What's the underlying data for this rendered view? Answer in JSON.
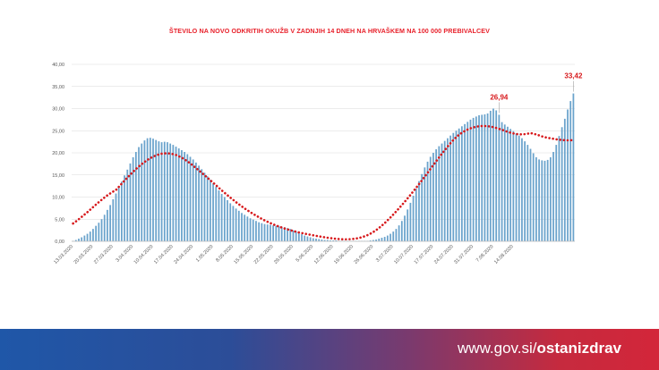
{
  "chart_data": {
    "type": "bar",
    "title": "ŠTEVILO NA NOVO ODKRITIH OKUŽB V ZADNJIH 14 DNEH NA HRVAŠKEM NA 100 000 PREBIVALCEV",
    "xlabel": "",
    "ylabel": "",
    "ylim": [
      0,
      40
    ],
    "y_ticks": [
      "0,00",
      "5,00",
      "10,00",
      "15,00",
      "20,00",
      "25,00",
      "30,00",
      "35,00",
      "40,00"
    ],
    "x_tick_labels": [
      "13.03.2020",
      "20.03.2020",
      "27.03.2020",
      "3.04.2020",
      "10.04.2020",
      "17.04.2020",
      "24.04.2020",
      "1.05.2020",
      "8.05.2020",
      "15.05.2020",
      "22.05.2020",
      "29.05.2020",
      "5.06.2020",
      "12.06.2020",
      "19.06.2020",
      "26.06.2020",
      "3.07.2020",
      "10.07.2020",
      "17.07.2020",
      "24.07.2020",
      "31.07.2020",
      "7.08.2020",
      "14.08.2020"
    ],
    "values": [
      0.1,
      0.3,
      0.6,
      0.9,
      1.3,
      1.7,
      2.2,
      2.8,
      3.5,
      4.2,
      5,
      6,
      7.1,
      8.2,
      9.5,
      10.8,
      12.1,
      13.5,
      14.9,
      16.2,
      17.6,
      19,
      20.2,
      21.3,
      22.1,
      22.8,
      23.3,
      23.4,
      23.2,
      22.9,
      22.6,
      22.4,
      22.5,
      22.4,
      22.1,
      21.8,
      21.4,
      21,
      20.6,
      20.2,
      19.7,
      19.1,
      18.5,
      17.8,
      17.1,
      16.3,
      15.5,
      14.7,
      13.9,
      13.1,
      12.3,
      11.5,
      10.7,
      10,
      9.3,
      8.6,
      8,
      7.4,
      6.9,
      6.4,
      6,
      5.6,
      5.2,
      4.9,
      4.6,
      4.3,
      4.1,
      3.9,
      3.8,
      3.7,
      3.6,
      3.5,
      3.4,
      3.3,
      3.2,
      3,
      2.8,
      2.5,
      2.2,
      1.9,
      1.6,
      1.3,
      1.1,
      0.9,
      0.7,
      0.6,
      0.5,
      0.4,
      0.3,
      0.3,
      0.2,
      0.2,
      0.2,
      0.1,
      0.1,
      0.1,
      0.1,
      0.1,
      0.1,
      0.1,
      0.1,
      0.1,
      0.1,
      0.1,
      0.2,
      0.3,
      0.4,
      0.6,
      0.8,
      1,
      1.3,
      1.7,
      2.2,
      2.8,
      3.6,
      4.6,
      5.8,
      7.2,
      8.7,
      10.3,
      11.9,
      13.6,
      15.2,
      16.7,
      18,
      19.1,
      20,
      20.8,
      21.5,
      22.1,
      22.7,
      23.3,
      23.9,
      24.5,
      25,
      25.5,
      26,
      26.5,
      27,
      27.5,
      27.9,
      28.2,
      28.5,
      28.6,
      28.7,
      28.9,
      29.5,
      30,
      29.6,
      28.6,
      26.94,
      26.4,
      25.9,
      25.4,
      24.9,
      24.4,
      23.9,
      23.3,
      22.6,
      21.8,
      20.9,
      19.9,
      19,
      18.5,
      18.3,
      18.2,
      18.4,
      19,
      20.2,
      21.8,
      23.8,
      25.8,
      27.7,
      29.8,
      31.7,
      33.42
    ],
    "trendline_label": "",
    "annotations": [
      {
        "value": "26,94",
        "date": "24.07.2020"
      },
      {
        "value": "33,42",
        "date": "14.08.2020"
      }
    ],
    "grid": true,
    "colors": {
      "bars": "#6aa3cc",
      "trend": "#d7191c",
      "grid": "#d9d9d9",
      "title": "#e8212b"
    }
  },
  "footer": {
    "url_prefix": "www.gov.si/",
    "url_bold": "ostanizdrav"
  }
}
